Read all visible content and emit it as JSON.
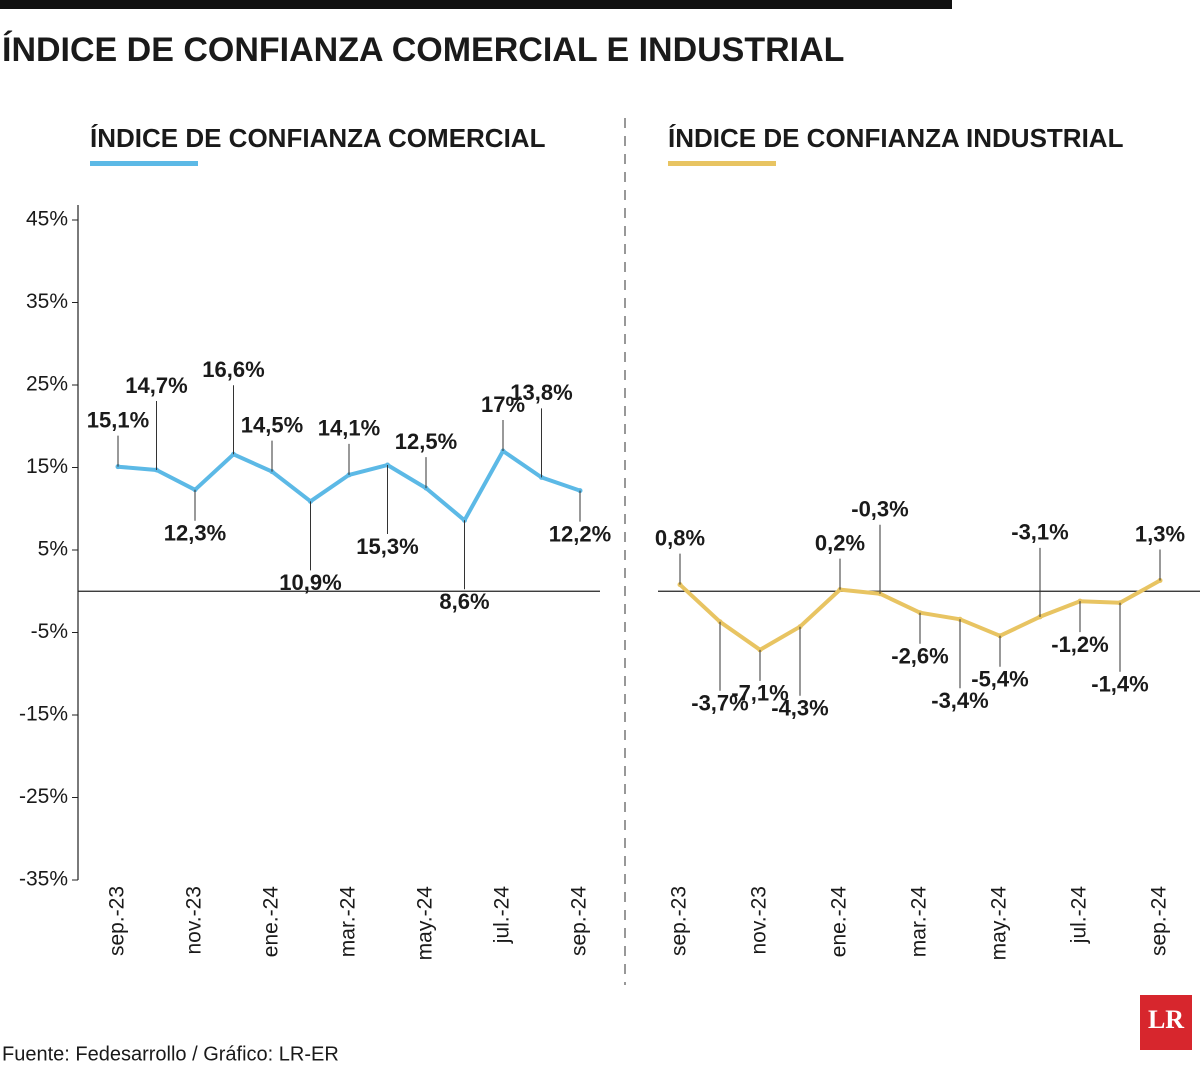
{
  "title": "ÍNDICE DE CONFIANZA COMERCIAL E INDUSTRIAL",
  "source": "Fuente: Fedesarrollo / Gráfico: LR-ER",
  "logo": "LR",
  "chart_data": [
    {
      "type": "line",
      "title": "ÍNDICE DE CONFIANZA COMERCIAL",
      "categories": [
        "sep.-23",
        null,
        "nov.-23",
        null,
        "ene.-24",
        null,
        "mar.-24",
        null,
        "may.-24",
        null,
        "jul.-24",
        null,
        "sep.-24"
      ],
      "series": [
        {
          "color": "#5cb9e6",
          "values": [
            15.1,
            14.7,
            12.3,
            16.6,
            14.5,
            10.9,
            14.1,
            15.3,
            12.5,
            8.6,
            17,
            13.8,
            12.2
          ],
          "value_labels": [
            "15,1%",
            "14,7%",
            "12,3%",
            "16,6%",
            "14,5%",
            "10,9%",
            "14,1%",
            "15,3%",
            "12,5%",
            "8,6%",
            "17%",
            "13,8%",
            "12,2%"
          ]
        }
      ],
      "ylim": [
        -35,
        45
      ],
      "yticks": [
        {
          "value": 45,
          "label": "45%"
        },
        {
          "value": 35,
          "label": "35%"
        },
        {
          "value": 25,
          "label": "25%"
        },
        {
          "value": 15,
          "label": "15%"
        },
        {
          "value": 5,
          "label": "5%"
        },
        {
          "value": -5,
          "label": "-5%"
        },
        {
          "value": -15,
          "label": "-15%"
        },
        {
          "value": -25,
          "label": "-25%"
        },
        {
          "value": -35,
          "label": "-35%"
        }
      ]
    },
    {
      "type": "line",
      "title": "ÍNDICE DE CONFIANZA INDUSTRIAL",
      "categories": [
        "sep.-23",
        null,
        "nov.-23",
        null,
        "ene.-24",
        null,
        "mar.-24",
        null,
        "may.-24",
        null,
        "jul.-24",
        null,
        "sep.-24"
      ],
      "series": [
        {
          "color": "#e8c462",
          "values": [
            0.8,
            -3.7,
            -7.1,
            -4.3,
            0.2,
            -0.3,
            -2.6,
            -3.4,
            -5.4,
            -3.1,
            -1.2,
            -1.4,
            1.3
          ],
          "value_labels": [
            "0,8%",
            "-3,7%",
            "-7,1%",
            "-4,3%",
            "0,2%",
            "-0,3%",
            "-2,6%",
            "-3,4%",
            "-5,4%",
            "-3,1%",
            "-1,2%",
            "-1,4%",
            "1,3%"
          ]
        }
      ],
      "ylim": [
        -35,
        45
      ]
    }
  ]
}
